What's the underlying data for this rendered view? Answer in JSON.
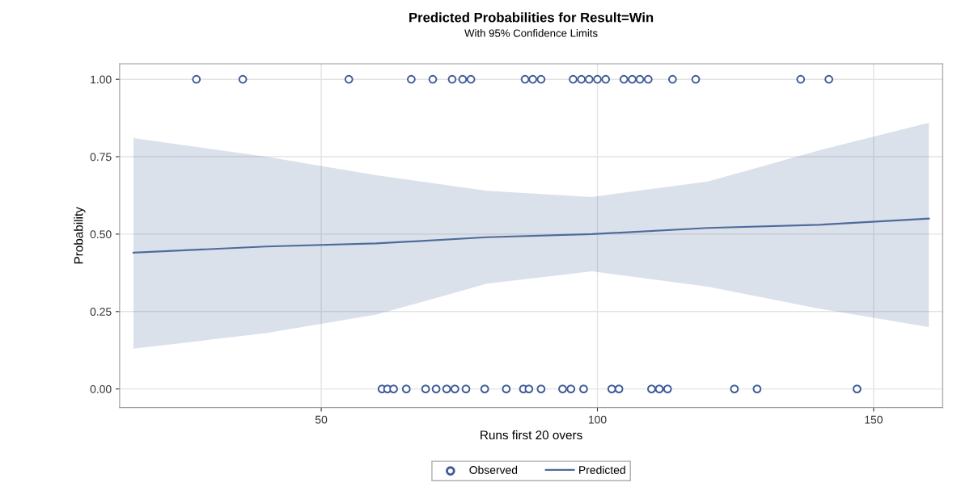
{
  "chart_data": {
    "type": "scatter",
    "title": "Predicted Probabilities for Result=Win",
    "subtitle": "With 95% Confidence Limits",
    "xlabel": "Runs first 20 overs",
    "ylabel": "Probability",
    "xlim": [
      13.5,
      162.5
    ],
    "ylim": [
      -0.06,
      1.05
    ],
    "xticks": [
      50,
      100,
      150
    ],
    "yticks": [
      {
        "value": 0,
        "label": "0.00"
      },
      {
        "value": 0.25,
        "label": "0.25"
      },
      {
        "value": 0.5,
        "label": "0.50"
      },
      {
        "value": 0.75,
        "label": "0.75"
      },
      {
        "value": 1,
        "label": "1.00"
      }
    ],
    "grid": true,
    "legend": "bottom",
    "series": [
      {
        "name": "Observed",
        "marker": "circle",
        "color": "#3f5a9a",
        "x": [
          27.4,
          35.8,
          55.0,
          66.3,
          70.2,
          73.7,
          75.6,
          77.1,
          86.9,
          88.3,
          89.8,
          95.6,
          97.1,
          98.5,
          100.0,
          101.5,
          104.8,
          106.3,
          107.7,
          109.2,
          113.6,
          117.8,
          136.8,
          141.9,
          61.0,
          62.0,
          63.1,
          65.4,
          68.9,
          70.8,
          72.7,
          74.2,
          76.2,
          79.6,
          83.5,
          86.6,
          87.6,
          89.8,
          93.7,
          95.2,
          97.5,
          102.6,
          103.9,
          109.8,
          111.2,
          112.7,
          124.8,
          128.9,
          147.0
        ],
        "values": [
          1,
          1,
          1,
          1,
          1,
          1,
          1,
          1,
          1,
          1,
          1,
          1,
          1,
          1,
          1,
          1,
          1,
          1,
          1,
          1,
          1,
          1,
          1,
          1,
          0,
          0,
          0,
          0,
          0,
          0,
          0,
          0,
          0,
          0,
          0,
          0,
          0,
          0,
          0,
          0,
          0,
          0,
          0,
          0,
          0,
          0,
          0,
          0,
          0
        ]
      },
      {
        "name": "Predicted",
        "type": "line",
        "marker": "none",
        "color": "#4d6b9b",
        "x": [
          16,
          40,
          60,
          80,
          99,
          120,
          140,
          160
        ],
        "values": [
          0.44,
          0.46,
          0.47,
          0.49,
          0.5,
          0.52,
          0.53,
          0.55
        ],
        "lower": [
          0.13,
          0.18,
          0.24,
          0.34,
          0.38,
          0.33,
          0.26,
          0.2
        ],
        "upper": [
          0.81,
          0.75,
          0.69,
          0.64,
          0.62,
          0.67,
          0.77,
          0.86
        ]
      }
    ]
  }
}
